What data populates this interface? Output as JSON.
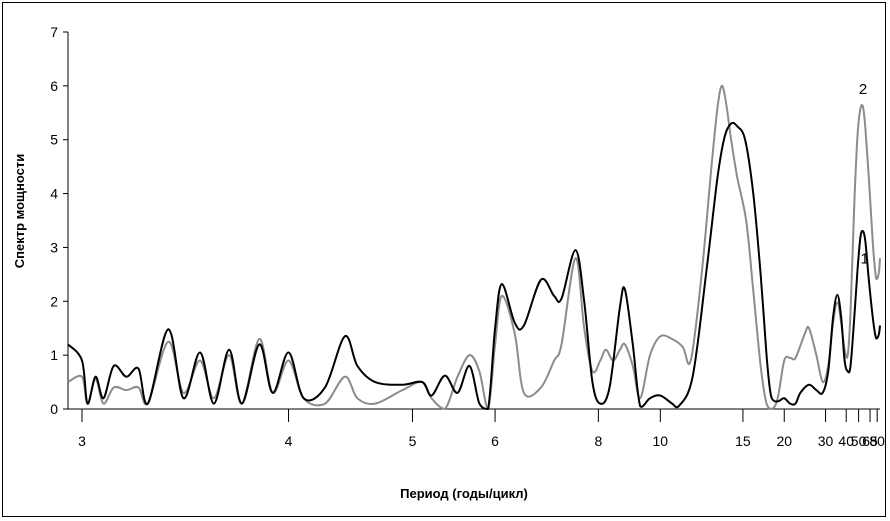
{
  "chart_data": {
    "type": "line",
    "title": "",
    "xlabel": "Период (годы/цикл)",
    "ylabel": "Спектр мощности",
    "xscale": "reciprocal",
    "xlim": [
      2.95,
      88
    ],
    "ylim": [
      0,
      7
    ],
    "y_ticks": [
      0,
      1,
      2,
      3,
      4,
      5,
      6,
      7
    ],
    "x_ticks": [
      3,
      4,
      5,
      6,
      8,
      10,
      15,
      20,
      30,
      40,
      50,
      65,
      80
    ],
    "x_tick_labels": [
      "3",
      "4",
      "5",
      "6",
      "8",
      "10",
      "15",
      "20",
      "30",
      "40",
      "50",
      "65",
      "80"
    ],
    "grid": false,
    "legend": "none",
    "colors": {
      "series_1": "#000000",
      "series_2": "#8c8c8c"
    },
    "series": [
      {
        "name": "1",
        "label_at": [
          57,
          2.7
        ],
        "points": [
          [
            2.95,
            1.2
          ],
          [
            3.0,
            0.9
          ],
          [
            3.02,
            0.1
          ],
          [
            3.05,
            0.6
          ],
          [
            3.08,
            0.2
          ],
          [
            3.12,
            0.8
          ],
          [
            3.17,
            0.6
          ],
          [
            3.22,
            0.75
          ],
          [
            3.26,
            0.1
          ],
          [
            3.35,
            1.48
          ],
          [
            3.42,
            0.2
          ],
          [
            3.5,
            1.05
          ],
          [
            3.57,
            0.1
          ],
          [
            3.65,
            1.1
          ],
          [
            3.72,
            0.1
          ],
          [
            3.82,
            1.2
          ],
          [
            3.9,
            0.3
          ],
          [
            4.0,
            1.05
          ],
          [
            4.1,
            0.2
          ],
          [
            4.25,
            0.4
          ],
          [
            4.4,
            1.35
          ],
          [
            4.5,
            0.8
          ],
          [
            4.65,
            0.5
          ],
          [
            4.9,
            0.45
          ],
          [
            5.1,
            0.5
          ],
          [
            5.2,
            0.25
          ],
          [
            5.35,
            0.62
          ],
          [
            5.5,
            0.3
          ],
          [
            5.65,
            0.8
          ],
          [
            5.78,
            0.1
          ],
          [
            5.9,
            0.0
          ],
          [
            6.0,
            1.5
          ],
          [
            6.1,
            2.32
          ],
          [
            6.3,
            1.6
          ],
          [
            6.45,
            1.55
          ],
          [
            6.75,
            2.4
          ],
          [
            7.0,
            2.1
          ],
          [
            7.15,
            2.05
          ],
          [
            7.45,
            2.95
          ],
          [
            7.65,
            2.0
          ],
          [
            7.85,
            0.5
          ],
          [
            8.05,
            0.1
          ],
          [
            8.3,
            0.4
          ],
          [
            8.6,
            1.9
          ],
          [
            8.75,
            2.22
          ],
          [
            9.0,
            1.2
          ],
          [
            9.25,
            0.05
          ],
          [
            9.6,
            0.2
          ],
          [
            10.0,
            0.25
          ],
          [
            10.5,
            0.1
          ],
          [
            10.8,
            0.05
          ],
          [
            11.5,
            0.6
          ],
          [
            12.3,
            2.6
          ],
          [
            13.0,
            4.3
          ],
          [
            13.5,
            5.05
          ],
          [
            14.0,
            5.3
          ],
          [
            14.5,
            5.25
          ],
          [
            15.2,
            5.0
          ],
          [
            16.0,
            4.0
          ],
          [
            16.8,
            2.5
          ],
          [
            17.5,
            1.0
          ],
          [
            18.0,
            0.3
          ],
          [
            18.5,
            0.15
          ],
          [
            19.2,
            0.15
          ],
          [
            20.0,
            0.2
          ],
          [
            21.0,
            0.1
          ],
          [
            22.0,
            0.1
          ],
          [
            23.0,
            0.3
          ],
          [
            25.0,
            0.45
          ],
          [
            27.0,
            0.35
          ],
          [
            29.0,
            0.3
          ],
          [
            31.0,
            0.7
          ],
          [
            33.0,
            1.7
          ],
          [
            35.0,
            2.12
          ],
          [
            37.0,
            1.7
          ],
          [
            39.0,
            0.9
          ],
          [
            41.0,
            0.7
          ],
          [
            43.0,
            0.8
          ],
          [
            46.0,
            1.7
          ],
          [
            49.0,
            2.6
          ],
          [
            52.0,
            3.2
          ],
          [
            55.0,
            3.3
          ],
          [
            58.0,
            3.1
          ],
          [
            63.0,
            2.4
          ],
          [
            70.0,
            1.7
          ],
          [
            76.0,
            1.35
          ],
          [
            80.0,
            1.32
          ],
          [
            85.0,
            1.4
          ],
          [
            88.0,
            1.55
          ]
        ]
      },
      {
        "name": "2",
        "label_at": [
          55,
          5.85
        ],
        "points": [
          [
            2.95,
            0.5
          ],
          [
            3.0,
            0.6
          ],
          [
            3.02,
            0.1
          ],
          [
            3.05,
            0.55
          ],
          [
            3.08,
            0.1
          ],
          [
            3.12,
            0.4
          ],
          [
            3.17,
            0.35
          ],
          [
            3.22,
            0.4
          ],
          [
            3.26,
            0.1
          ],
          [
            3.35,
            1.25
          ],
          [
            3.42,
            0.3
          ],
          [
            3.5,
            0.9
          ],
          [
            3.57,
            0.2
          ],
          [
            3.65,
            1.0
          ],
          [
            3.72,
            0.1
          ],
          [
            3.82,
            1.3
          ],
          [
            3.9,
            0.3
          ],
          [
            4.0,
            0.9
          ],
          [
            4.1,
            0.2
          ],
          [
            4.25,
            0.1
          ],
          [
            4.4,
            0.6
          ],
          [
            4.5,
            0.2
          ],
          [
            4.65,
            0.1
          ],
          [
            4.9,
            0.35
          ],
          [
            5.1,
            0.5
          ],
          [
            5.2,
            0.2
          ],
          [
            5.35,
            0.0
          ],
          [
            5.5,
            0.6
          ],
          [
            5.65,
            1.0
          ],
          [
            5.78,
            0.7
          ],
          [
            5.9,
            0.0
          ],
          [
            6.0,
            1.2
          ],
          [
            6.1,
            2.1
          ],
          [
            6.3,
            1.4
          ],
          [
            6.45,
            0.3
          ],
          [
            6.75,
            0.4
          ],
          [
            7.0,
            0.9
          ],
          [
            7.15,
            1.2
          ],
          [
            7.45,
            2.8
          ],
          [
            7.65,
            1.5
          ],
          [
            7.85,
            0.7
          ],
          [
            8.05,
            0.9
          ],
          [
            8.2,
            1.1
          ],
          [
            8.4,
            0.9
          ],
          [
            8.6,
            1.1
          ],
          [
            8.75,
            1.2
          ],
          [
            9.0,
            0.8
          ],
          [
            9.25,
            0.2
          ],
          [
            9.6,
            1.0
          ],
          [
            10.0,
            1.35
          ],
          [
            10.5,
            1.3
          ],
          [
            11.0,
            1.15
          ],
          [
            11.4,
            0.9
          ],
          [
            12.0,
            2.5
          ],
          [
            12.6,
            4.5
          ],
          [
            13.0,
            5.6
          ],
          [
            13.3,
            6.0
          ],
          [
            13.6,
            5.7
          ],
          [
            14.0,
            5.0
          ],
          [
            14.5,
            4.3
          ],
          [
            15.3,
            3.5
          ],
          [
            16.0,
            2.2
          ],
          [
            16.8,
            0.8
          ],
          [
            17.5,
            0.1
          ],
          [
            18.2,
            0.0
          ],
          [
            19.0,
            0.2
          ],
          [
            20.0,
            0.9
          ],
          [
            21.0,
            0.95
          ],
          [
            22.0,
            0.95
          ],
          [
            24.0,
            1.4
          ],
          [
            25.0,
            1.5
          ],
          [
            27.0,
            1.0
          ],
          [
            29.0,
            0.5
          ],
          [
            31.0,
            0.8
          ],
          [
            33.0,
            1.6
          ],
          [
            35.0,
            1.98
          ],
          [
            37.0,
            1.6
          ],
          [
            39.0,
            1.1
          ],
          [
            41.0,
            1.0
          ],
          [
            43.0,
            1.8
          ],
          [
            46.0,
            3.8
          ],
          [
            49.0,
            5.1
          ],
          [
            52.0,
            5.58
          ],
          [
            55.0,
            5.6
          ],
          [
            58.0,
            5.2
          ],
          [
            63.0,
            4.3
          ],
          [
            70.0,
            3.1
          ],
          [
            76.0,
            2.5
          ],
          [
            80.0,
            2.42
          ],
          [
            85.0,
            2.55
          ],
          [
            88.0,
            2.8
          ]
        ]
      }
    ]
  }
}
